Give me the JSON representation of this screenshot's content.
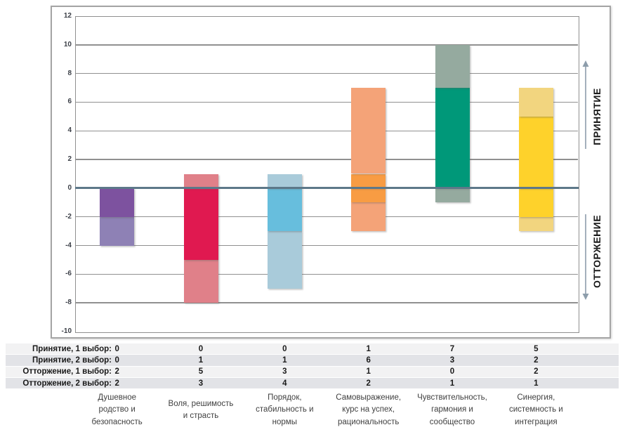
{
  "annotations": {
    "acceptance": "ПРИНЯТИЕ",
    "rejection": "ОТТОРЖЕНИЕ"
  },
  "chart_data": {
    "type": "bar",
    "stacked": true,
    "diverging": true,
    "title": "",
    "xlabel": "",
    "ylabel": "",
    "ylim": [
      -10,
      12
    ],
    "grid": true,
    "legend_position": "none",
    "y_ticks": [
      12,
      10,
      8,
      6,
      4,
      2,
      0,
      -2,
      -4,
      -6,
      -8,
      -10
    ],
    "categories": [
      "Душевное родство и безопасность",
      "Воля, решимость и страсть",
      "Порядок, стабильность и нормы",
      "Самовыражение, курс на успех, рациональность",
      "Чувствительность, гармония и сообщество",
      "Синергия, системность и интеграция"
    ],
    "category_labels": [
      [
        "Душевное",
        "родство и",
        "безопасность"
      ],
      [
        "Воля, решимость",
        "и страсть"
      ],
      [
        "Порядок,",
        "стабильность и",
        "нормы"
      ],
      [
        "Самовыражение,",
        "курс на успех,",
        "рациональность"
      ],
      [
        "Чувствительность,",
        "гармония и",
        "сообщество"
      ],
      [
        "Синергия,",
        "системность и",
        "интеграция"
      ]
    ],
    "series": [
      {
        "name": "Принятие, 1 выбор:",
        "direction": "positive",
        "choice": 1,
        "values": [
          0,
          0,
          0,
          1,
          7,
          5
        ]
      },
      {
        "name": "Принятие, 2 выбор:",
        "direction": "positive",
        "choice": 2,
        "values": [
          0,
          1,
          1,
          6,
          3,
          2
        ]
      },
      {
        "name": "Отторжение, 1 выбор:",
        "direction": "negative",
        "choice": 1,
        "values": [
          2,
          5,
          3,
          1,
          0,
          2
        ]
      },
      {
        "name": "Отторжение, 2 выбор:",
        "direction": "negative",
        "choice": 2,
        "values": [
          2,
          3,
          4,
          2,
          1,
          1
        ]
      }
    ],
    "category_colors": [
      {
        "primary": "#7d529f",
        "secondary": "#8e81b5"
      },
      {
        "primary": "#e01950",
        "secondary": "#e08089"
      },
      {
        "primary": "#67bedd",
        "secondary": "#a9cbda"
      },
      {
        "primary": "#f89c43",
        "secondary": "#f4a378"
      },
      {
        "primary": "#009879",
        "secondary": "#95aa9f"
      },
      {
        "primary": "#fed22b",
        "secondary": "#f2d57f"
      }
    ]
  },
  "colors": {
    "gridline": "#909090",
    "zero_line": "#5d7889",
    "frame_border": "#a5a5a5",
    "arrow": "#8d9dab",
    "row_stripe_odd": "#f2f2f3",
    "row_stripe_even": "#e2e3e7"
  }
}
